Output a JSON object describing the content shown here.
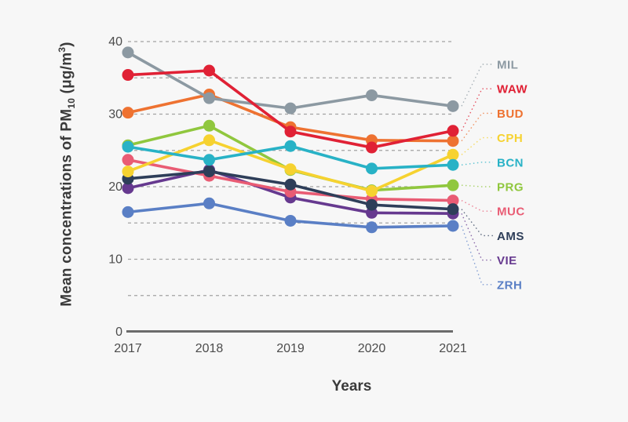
{
  "figure": {
    "background_color": "#f7f7f7",
    "grid_color": "#a3a3a3",
    "axis_line_color": "#6b6b6b",
    "tick_text_color": "#4c4c4c",
    "title_text_color": "#3a3a3a"
  },
  "y_axis_title": {
    "main": "Mean concentrations of PM",
    "sub": "10",
    "unit_prefix": " (μg/m",
    "sup": "3",
    "suffix": ")"
  },
  "x_axis_title": "Years",
  "chart_data": {
    "type": "line",
    "title": "",
    "xlabel": "Years",
    "ylabel": "Mean concentrations of PM10 (μg/m3)",
    "categories": [
      "2017",
      "2018",
      "2019",
      "2020",
      "2021"
    ],
    "y_ticks": [
      0,
      10,
      20,
      30,
      40
    ],
    "gridlines_at": [
      5,
      10,
      15,
      20,
      25,
      30,
      35,
      40
    ],
    "grid_style": "dashed horizontal",
    "ylim": [
      0,
      40
    ],
    "legend_position": "right",
    "draw_order": [
      "VIE",
      "ZRH",
      "MUC",
      "AMS",
      "PRG",
      "CPH",
      "BCN",
      "BUD",
      "MIL",
      "WAW"
    ],
    "series": [
      {
        "name": "MIL",
        "color": "#8c99a2",
        "values": [
          38.5,
          32.2,
          30.8,
          32.6,
          31.1
        ]
      },
      {
        "name": "WAW",
        "color": "#e02135",
        "values": [
          35.4,
          36.0,
          27.6,
          25.4,
          27.7
        ]
      },
      {
        "name": "BUD",
        "color": "#ee7231",
        "values": [
          30.2,
          32.7,
          28.2,
          26.4,
          26.3
        ]
      },
      {
        "name": "CPH",
        "color": "#f6d230",
        "values": [
          22.1,
          26.4,
          22.4,
          19.4,
          24.4
        ]
      },
      {
        "name": "BCN",
        "color": "#28b2c6",
        "values": [
          25.5,
          23.7,
          25.6,
          22.5,
          23.0
        ]
      },
      {
        "name": "PRG",
        "color": "#90c73e",
        "values": [
          25.7,
          28.4,
          22.3,
          19.5,
          20.2
        ]
      },
      {
        "name": "MUC",
        "color": "#e95c74",
        "values": [
          23.7,
          21.5,
          19.3,
          18.3,
          18.1
        ]
      },
      {
        "name": "AMS",
        "color": "#2e3e59",
        "values": [
          21.1,
          22.1,
          20.3,
          17.5,
          16.9
        ]
      },
      {
        "name": "VIE",
        "color": "#66398f",
        "values": [
          19.8,
          22.3,
          18.5,
          16.4,
          16.3
        ]
      },
      {
        "name": "ZRH",
        "color": "#5a7fc5",
        "values": [
          16.5,
          17.7,
          15.3,
          14.4,
          14.6
        ]
      }
    ]
  }
}
